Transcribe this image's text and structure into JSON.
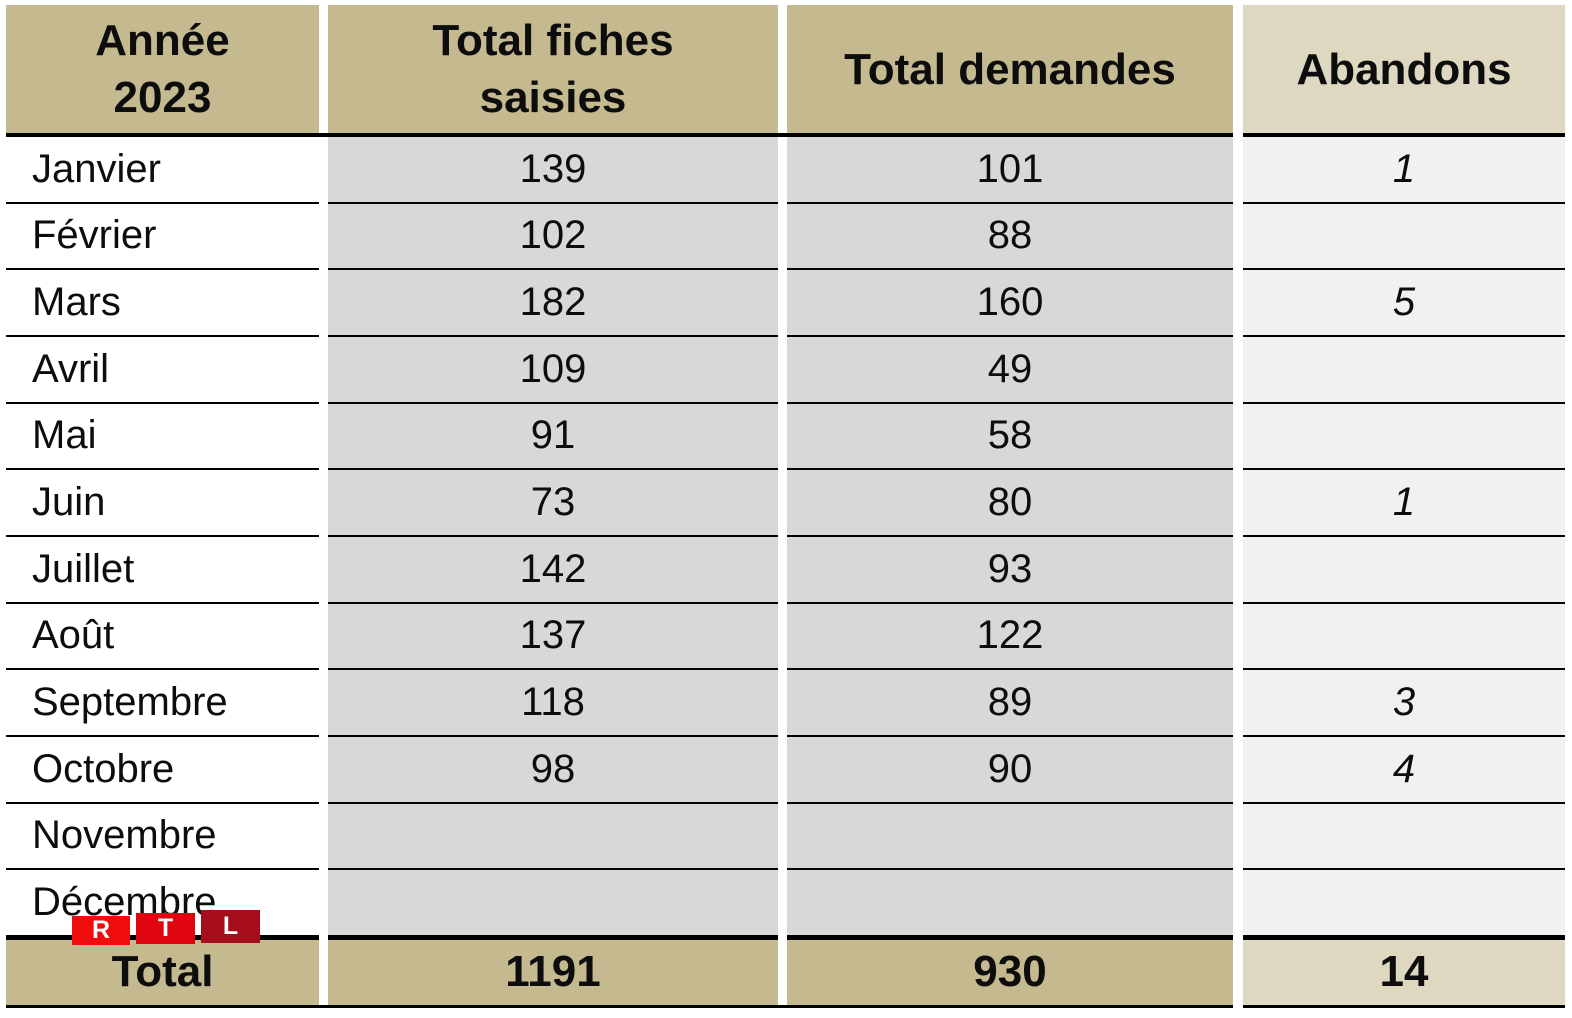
{
  "chart_data": {
    "type": "table",
    "title": "Année 2023",
    "columns": [
      "Année 2023",
      "Total fiches saisies",
      "Total demandes",
      "Abandons"
    ],
    "months": [
      "Janvier",
      "Février",
      "Mars",
      "Avril",
      "Mai",
      "Juin",
      "Juillet",
      "Août",
      "Septembre",
      "Octobre",
      "Novembre",
      "Décembre"
    ],
    "total_fiches_saisies": [
      139,
      102,
      182,
      109,
      91,
      73,
      142,
      137,
      118,
      98,
      null,
      null
    ],
    "total_demandes": [
      101,
      88,
      160,
      49,
      58,
      80,
      93,
      122,
      89,
      90,
      null,
      null
    ],
    "abandons": [
      1,
      null,
      5,
      null,
      null,
      1,
      null,
      null,
      3,
      4,
      null,
      null
    ],
    "totals": {
      "label": "Total",
      "total_fiches_saisies": 1191,
      "total_demandes": 930,
      "abandons": 14
    }
  },
  "table": {
    "header": {
      "annee_line1": "Année",
      "annee_line2": "2023",
      "fiches_line1": "Total fiches",
      "fiches_line2": "saisies",
      "demandes": "Total demandes",
      "abandons": "Abandons"
    },
    "rows": [
      {
        "month": "Janvier",
        "fiches": "139",
        "demandes": "101",
        "abandons": "1"
      },
      {
        "month": "Février",
        "fiches": "102",
        "demandes": "88",
        "abandons": ""
      },
      {
        "month": "Mars",
        "fiches": "182",
        "demandes": "160",
        "abandons": "5"
      },
      {
        "month": "Avril",
        "fiches": "109",
        "demandes": "49",
        "abandons": ""
      },
      {
        "month": "Mai",
        "fiches": "91",
        "demandes": "58",
        "abandons": ""
      },
      {
        "month": "Juin",
        "fiches": "73",
        "demandes": "80",
        "abandons": "1"
      },
      {
        "month": "Juillet",
        "fiches": "142",
        "demandes": "93",
        "abandons": ""
      },
      {
        "month": "Août",
        "fiches": "137",
        "demandes": "122",
        "abandons": ""
      },
      {
        "month": "Septembre",
        "fiches": "118",
        "demandes": "89",
        "abandons": "3"
      },
      {
        "month": "Octobre",
        "fiches": "98",
        "demandes": "90",
        "abandons": "4"
      },
      {
        "month": "Novembre",
        "fiches": "",
        "demandes": "",
        "abandons": ""
      },
      {
        "month": "Décembre",
        "fiches": "",
        "demandes": "",
        "abandons": ""
      }
    ],
    "total": {
      "label": "Total",
      "fiches": "1191",
      "demandes": "930",
      "abandons": "14"
    }
  },
  "logo": {
    "letter_r": "R",
    "letter_t": "T",
    "letter_l": "L"
  },
  "colors": {
    "header_tan": "#C5B990",
    "abandons_header_tan": "#DFD8C1",
    "body_gray": "#D8D8D8",
    "abandons_body_gray": "#F1F1F0",
    "grid_line": "#000000",
    "logo_red_r": "#EF0C0C",
    "logo_red_t": "#DE0511",
    "logo_red_l": "#A60E1D"
  }
}
